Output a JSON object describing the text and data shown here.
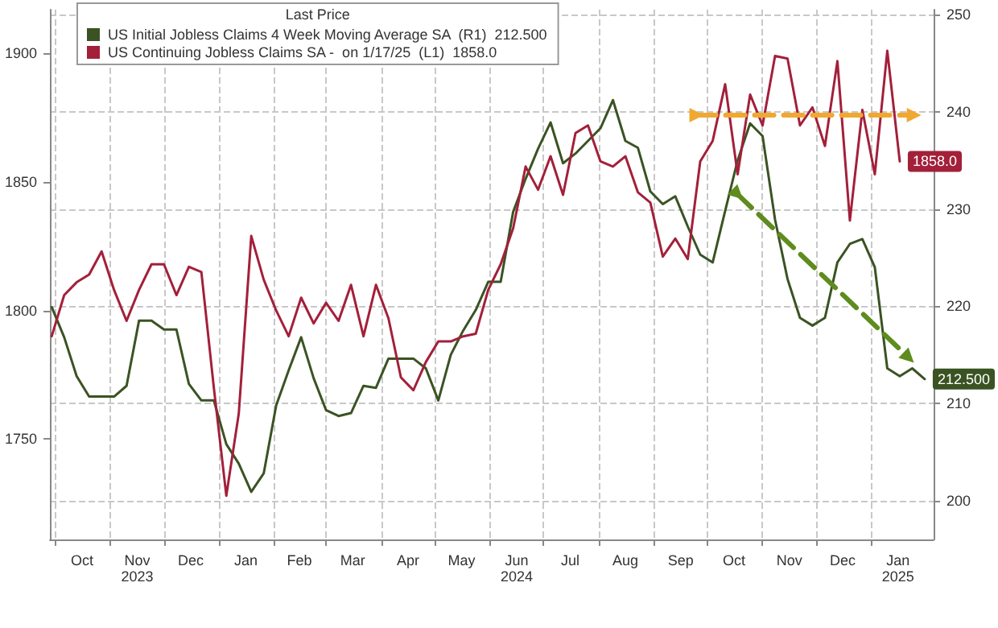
{
  "chart_data": {
    "type": "line",
    "legend_title": "Last Price",
    "legend": "top left",
    "grid": true,
    "marker": "none",
    "xlim": [
      "2023-09-28",
      "2025-02-05"
    ],
    "xticks": [
      {
        "value": "2023-10-01",
        "label": null
      },
      {
        "value": "2023-10-16",
        "label": "Oct"
      },
      {
        "value": "2023-11-01",
        "label": null
      },
      {
        "value": "2023-11-16",
        "label": "Nov\n2023"
      },
      {
        "value": "2023-12-01",
        "label": null
      },
      {
        "value": "2023-12-16",
        "label": "Dec"
      },
      {
        "value": "2024-01-01",
        "label": null
      },
      {
        "value": "2024-01-16",
        "label": "Jan"
      },
      {
        "value": "2024-02-01",
        "label": null
      },
      {
        "value": "2024-02-15",
        "label": "Feb"
      },
      {
        "value": "2024-03-01",
        "label": null
      },
      {
        "value": "2024-03-16",
        "label": "Mar"
      },
      {
        "value": "2024-04-01",
        "label": null
      },
      {
        "value": "2024-04-16",
        "label": "Apr"
      },
      {
        "value": "2024-05-01",
        "label": null
      },
      {
        "value": "2024-05-16",
        "label": "May"
      },
      {
        "value": "2024-06-01",
        "label": null
      },
      {
        "value": "2024-06-16",
        "label": "Jun\n2024"
      },
      {
        "value": "2024-07-01",
        "label": null
      },
      {
        "value": "2024-07-16",
        "label": "Jul"
      },
      {
        "value": "2024-08-01",
        "label": null
      },
      {
        "value": "2024-08-16",
        "label": "Aug"
      },
      {
        "value": "2024-09-01",
        "label": null
      },
      {
        "value": "2024-09-16",
        "label": "Sep"
      },
      {
        "value": "2024-10-01",
        "label": null
      },
      {
        "value": "2024-10-16",
        "label": "Oct"
      },
      {
        "value": "2024-11-01",
        "label": null
      },
      {
        "value": "2024-11-16",
        "label": "Nov"
      },
      {
        "value": "2024-12-01",
        "label": null
      },
      {
        "value": "2024-12-16",
        "label": "Dec"
      },
      {
        "value": "2025-01-01",
        "label": null
      },
      {
        "value": "2025-01-16",
        "label": "Jan\n2025"
      }
    ],
    "ylim": [
      1711,
      1917
    ],
    "yticks": [
      1750,
      1800,
      1850,
      1900
    ],
    "y2lim": [
      196,
      250.5
    ],
    "y2ticks": [
      200,
      210,
      220,
      230,
      240,
      250
    ],
    "series": [
      {
        "name": "US Initial Jobless Claims 4 Week Moving Average SA  (R1)  212.500",
        "color": "#3b5323",
        "axis": "y2",
        "x": [
          "2023-09-29",
          "2023-10-06",
          "2023-10-13",
          "2023-10-20",
          "2023-10-27",
          "2023-11-03",
          "2023-11-10",
          "2023-11-17",
          "2023-11-24",
          "2023-12-01",
          "2023-12-08",
          "2023-12-15",
          "2023-12-22",
          "2023-12-29",
          "2024-01-05",
          "2024-01-12",
          "2024-01-19",
          "2024-01-26",
          "2024-02-02",
          "2024-02-09",
          "2024-02-16",
          "2024-02-23",
          "2024-03-01",
          "2024-03-08",
          "2024-03-15",
          "2024-03-22",
          "2024-03-29",
          "2024-04-05",
          "2024-04-12",
          "2024-04-19",
          "2024-04-26",
          "2024-05-03",
          "2024-05-10",
          "2024-05-17",
          "2024-05-24",
          "2024-05-31",
          "2024-06-07",
          "2024-06-14",
          "2024-06-21",
          "2024-06-28",
          "2024-07-05",
          "2024-07-12",
          "2024-07-19",
          "2024-07-26",
          "2024-08-02",
          "2024-08-09",
          "2024-08-16",
          "2024-08-23",
          "2024-08-30",
          "2024-09-06",
          "2024-09-13",
          "2024-09-20",
          "2024-09-27",
          "2024-10-04",
          "2024-10-11",
          "2024-10-18",
          "2024-10-25",
          "2024-11-01",
          "2024-11-08",
          "2024-11-15",
          "2024-11-22",
          "2024-11-29",
          "2024-12-06",
          "2024-12-13",
          "2024-12-20",
          "2024-12-27",
          "2025-01-03",
          "2025-01-10",
          "2025-01-17",
          "2025-01-24",
          "2025-01-31"
        ],
        "values": [
          219.9,
          216.8,
          212.8,
          210.7,
          210.7,
          210.7,
          211.8,
          218.5,
          218.5,
          217.6,
          217.6,
          212,
          210.3,
          210.3,
          205.8,
          203.8,
          200.9,
          202.8,
          209.8,
          213.4,
          216.8,
          212.6,
          209.3,
          208.7,
          209,
          211.8,
          211.6,
          214.6,
          214.6,
          214.6,
          213.6,
          210.3,
          215,
          217.5,
          219.6,
          222.5,
          222.5,
          229.7,
          233.1,
          236.2,
          238.9,
          234.7,
          235.7,
          237,
          238.3,
          241.2,
          237,
          236.3,
          231.8,
          230.5,
          231.3,
          228.2,
          225.3,
          224.5,
          229.8,
          235,
          238.8,
          237.5,
          228.9,
          222.8,
          218.8,
          218,
          218.8,
          224.5,
          226.4,
          226.9,
          224,
          213.6,
          212.8,
          213.6,
          212.5
        ],
        "value_labels": [
          null,
          null,
          null,
          null,
          null,
          null,
          null,
          null,
          null,
          null,
          null,
          null,
          null,
          null,
          null,
          null,
          null,
          null,
          null,
          null,
          null,
          null,
          null,
          null,
          null,
          null,
          null,
          null,
          null,
          null,
          null,
          null,
          null,
          null,
          null,
          null,
          null,
          null,
          null,
          null,
          null,
          null,
          null,
          null,
          null,
          null,
          null,
          null,
          null,
          null,
          null,
          null,
          null,
          null,
          null,
          null,
          null,
          null,
          null,
          null,
          null,
          null,
          null,
          null,
          null,
          null,
          null,
          null,
          null,
          null,
          "212.500"
        ]
      },
      {
        "name": "US Continuing Jobless Claims SA -  on 1/17/25  (L1)  1858.0",
        "color": "#a3203a",
        "x": [
          "2023-09-29",
          "2023-10-06",
          "2023-10-13",
          "2023-10-20",
          "2023-10-27",
          "2023-11-03",
          "2023-11-10",
          "2023-11-17",
          "2023-11-24",
          "2023-12-01",
          "2023-12-08",
          "2023-12-15",
          "2023-12-22",
          "2023-12-29",
          "2024-01-05",
          "2024-01-12",
          "2024-01-19",
          "2024-01-26",
          "2024-02-02",
          "2024-02-09",
          "2024-02-16",
          "2024-02-23",
          "2024-03-01",
          "2024-03-08",
          "2024-03-15",
          "2024-03-22",
          "2024-03-29",
          "2024-04-05",
          "2024-04-12",
          "2024-04-19",
          "2024-04-26",
          "2024-05-03",
          "2024-05-10",
          "2024-05-17",
          "2024-05-24",
          "2024-05-31",
          "2024-06-07",
          "2024-06-14",
          "2024-06-21",
          "2024-06-28",
          "2024-07-05",
          "2024-07-12",
          "2024-07-19",
          "2024-07-26",
          "2024-08-02",
          "2024-08-09",
          "2024-08-16",
          "2024-08-23",
          "2024-08-30",
          "2024-09-06",
          "2024-09-13",
          "2024-09-20",
          "2024-09-27",
          "2024-10-04",
          "2024-10-11",
          "2024-10-18",
          "2024-10-25",
          "2024-11-01",
          "2024-11-08",
          "2024-11-15",
          "2024-11-22",
          "2024-11-29",
          "2024-12-06",
          "2024-12-13",
          "2024-12-20",
          "2024-12-27",
          "2025-01-03",
          "2025-01-10",
          "2025-01-17"
        ],
        "values": [
          1790,
          1806,
          1811,
          1814,
          1823,
          1808,
          1796,
          1808,
          1818,
          1818,
          1806,
          1817,
          1815,
          1770,
          1728,
          1760,
          1829,
          1812,
          1800,
          1790,
          1805,
          1795,
          1803,
          1796,
          1810,
          1790,
          1810,
          1797,
          1774,
          1769,
          1780,
          1788,
          1788,
          1790,
          1791,
          1808,
          1818,
          1832,
          1856,
          1847,
          1860,
          1845,
          1869,
          1872,
          1858,
          1856,
          1860,
          1846,
          1842,
          1821,
          1828,
          1820,
          1858,
          1866,
          1888,
          1853,
          1884,
          1872,
          1899,
          1898,
          1872,
          1879,
          1864,
          1897,
          1835,
          1878,
          1853,
          1901,
          1858
        ],
        "value_labels": [
          null,
          null,
          null,
          null,
          null,
          null,
          null,
          null,
          null,
          null,
          null,
          null,
          null,
          null,
          null,
          null,
          null,
          null,
          null,
          null,
          null,
          null,
          null,
          null,
          null,
          null,
          null,
          null,
          null,
          null,
          null,
          null,
          null,
          null,
          null,
          null,
          null,
          null,
          null,
          null,
          null,
          null,
          null,
          null,
          null,
          null,
          null,
          null,
          null,
          null,
          null,
          null,
          null,
          null,
          null,
          null,
          null,
          null,
          null,
          null,
          null,
          null,
          null,
          null,
          null,
          null,
          null,
          null,
          "1858.0"
        ]
      },
      {
        "type": "line",
        "color": "#f0a830",
        "line_style": "dashed",
        "marker": "triangle",
        "x": [
          "2024-09-25",
          "2025-01-25"
        ],
        "values": [
          1876,
          1876
        ]
      },
      {
        "type": "line",
        "color": "#5e8c1e",
        "line_style": "dashed",
        "marker": "triangle",
        "axis": "y2",
        "x": [
          "2024-10-18",
          "2025-01-22"
        ],
        "values": [
          231.5,
          214.7
        ]
      }
    ]
  }
}
